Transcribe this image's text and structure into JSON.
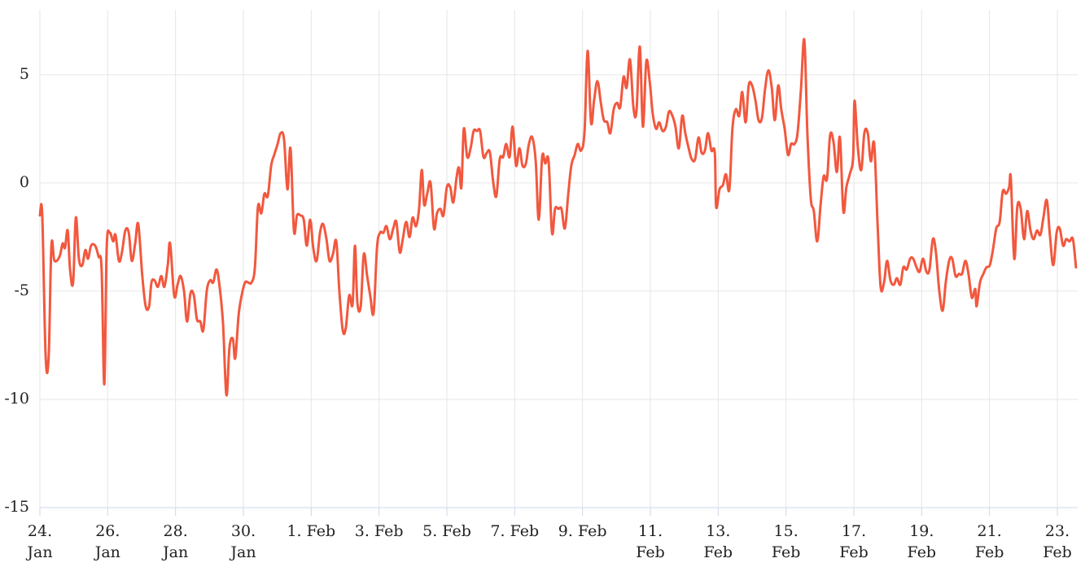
{
  "chart_data": {
    "type": "line",
    "x": [
      0,
      0.07,
      0.17,
      0.26,
      0.34,
      0.43,
      0.58,
      0.67,
      0.74,
      0.82,
      0.89,
      0.98,
      1.06,
      1.15,
      1.25,
      1.34,
      1.42,
      1.51,
      1.63,
      1.73,
      1.82,
      1.9,
      1.97,
      2.06,
      2.16,
      2.23,
      2.33,
      2.42,
      2.52,
      2.62,
      2.71,
      2.81,
      2.9,
      3.02,
      3.12,
      3.22,
      3.29,
      3.38,
      3.48,
      3.58,
      3.67,
      3.77,
      3.84,
      3.96,
      4.06,
      4.15,
      4.25,
      4.34,
      4.44,
      4.54,
      4.63,
      4.73,
      4.82,
      4.92,
      5.02,
      5.11,
      5.21,
      5.3,
      5.4,
      5.5,
      5.59,
      5.69,
      5.76,
      5.86,
      5.95,
      6.05,
      6.14,
      6.24,
      6.34,
      6.43,
      6.53,
      6.62,
      6.72,
      6.82,
      6.91,
      7.01,
      7.1,
      7.2,
      7.3,
      7.39,
      7.49,
      7.58,
      7.68,
      7.78,
      7.87,
      7.97,
      8.06,
      8.16,
      8.26,
      8.35,
      8.45,
      8.54,
      8.64,
      8.74,
      8.83,
      8.93,
      9.02,
      9.12,
      9.22,
      9.29,
      9.36,
      9.46,
      9.55,
      9.65,
      9.74,
      9.84,
      9.94,
      10.03,
      10.13,
      10.22,
      10.32,
      10.42,
      10.51,
      10.61,
      10.7,
      10.8,
      10.9,
      10.99,
      11.09,
      11.18,
      11.26,
      11.33,
      11.42,
      11.52,
      11.62,
      11.71,
      11.81,
      11.9,
      12,
      12.1,
      12.19,
      12.29,
      12.36,
      12.43,
      12.5,
      12.6,
      12.7,
      12.79,
      12.89,
      12.98,
      13.08,
      13.18,
      13.27,
      13.37,
      13.46,
      13.56,
      13.66,
      13.75,
      13.85,
      13.94,
      14.04,
      14.14,
      14.23,
      14.33,
      14.42,
      14.52,
      14.62,
      14.71,
      14.81,
      14.9,
      15,
      15.1,
      15.19,
      15.29,
      15.38,
      15.48,
      15.58,
      15.67,
      15.77,
      15.86,
      15.96,
      16.06,
      16.15,
      16.25,
      16.34,
      16.44,
      16.54,
      16.63,
      16.73,
      16.82,
      16.92,
      17.02,
      17.11,
      17.21,
      17.3,
      17.4,
      17.5,
      17.59,
      17.69,
      17.78,
      17.88,
      17.98,
      18.07,
      18.17,
      18.26,
      18.36,
      18.46,
      18.55,
      18.65,
      18.74,
      18.84,
      18.94,
      19.03,
      19.13,
      19.22,
      19.32,
      19.42,
      19.51,
      19.61,
      19.7,
      19.8,
      19.9,
      19.94,
      20.04,
      20.14,
      20.23,
      20.33,
      20.42,
      20.52,
      20.62,
      20.71,
      20.81,
      20.9,
      21,
      21.1,
      21.19,
      21.29,
      21.38,
      21.48,
      21.58,
      21.67,
      21.77,
      21.86,
      21.96,
      22.06,
      22.15,
      22.25,
      22.34,
      22.44,
      22.54,
      22.63,
      22.73,
      22.82,
      22.92,
      23.02,
      23.11,
      23.21,
      23.3,
      23.4,
      23.5,
      23.59,
      23.69,
      23.78,
      23.88,
      23.98,
      24.02,
      24.12,
      24.22,
      24.31,
      24.41,
      24.5,
      24.6,
      24.7,
      24.79,
      24.89,
      24.98,
      25.08,
      25.18,
      25.27,
      25.37,
      25.46,
      25.56,
      25.66,
      25.75,
      25.85,
      25.94,
      26.04,
      26.14,
      26.23,
      26.33,
      26.42,
      26.52,
      26.62,
      26.71,
      26.81,
      26.9,
      27,
      27.1,
      27.19,
      27.29,
      27.38,
      27.48,
      27.58,
      27.62,
      27.72,
      27.82,
      27.91,
      28.01,
      28.1,
      28.2,
      28.3,
      28.39,
      28.49,
      28.58,
      28.63,
      28.73,
      28.82,
      28.92,
      29.02,
      29.11,
      29.21,
      29.3,
      29.4,
      29.5,
      29.59,
      29.69,
      29.78,
      29.88,
      29.98,
      30.07,
      30.17,
      30.26,
      30.36,
      30.46,
      30.55
    ],
    "series": [
      {
        "color": "#f2583e",
        "values": [
          -1.5,
          -1.5,
          -8,
          -8,
          -2.9,
          -3.6,
          -3.4,
          -2.8,
          -3,
          -2.2,
          -4,
          -4.6,
          -1.6,
          -3.5,
          -3.8,
          -3.1,
          -3.5,
          -2.9,
          -2.9,
          -3.4,
          -4,
          -9.3,
          -3,
          -2.3,
          -2.7,
          -2.4,
          -3.6,
          -3.2,
          -2.2,
          -2.3,
          -3.6,
          -2.8,
          -1.9,
          -4.3,
          -5.7,
          -5.7,
          -4.6,
          -4.5,
          -4.8,
          -4.3,
          -4.8,
          -3.8,
          -2.8,
          -5.2,
          -4.7,
          -4.3,
          -5,
          -6.4,
          -5.1,
          -5.2,
          -6.3,
          -6.4,
          -6.8,
          -5,
          -4.5,
          -4.6,
          -4,
          -4.8,
          -6.5,
          -9.8,
          -7.6,
          -7.2,
          -8.1,
          -6.1,
          -5.2,
          -4.6,
          -4.6,
          -4.6,
          -3.9,
          -1.1,
          -1.4,
          -0.5,
          -0.6,
          0.8,
          1.3,
          1.8,
          2.3,
          2,
          -0.3,
          1.6,
          -2.2,
          -1.5,
          -1.5,
          -1.7,
          -2.9,
          -1.7,
          -3,
          -3.6,
          -2.3,
          -1.9,
          -2.6,
          -3.6,
          -3.3,
          -2.7,
          -5,
          -6.8,
          -6.7,
          -5.2,
          -5.6,
          -2.9,
          -5.5,
          -5.7,
          -3.3,
          -4.3,
          -5.2,
          -6,
          -3,
          -2.3,
          -2.3,
          -2,
          -2.6,
          -2.1,
          -1.8,
          -3.2,
          -2.6,
          -1.8,
          -2.5,
          -1.6,
          -2,
          -1.2,
          0.6,
          -1,
          -0.5,
          0,
          -2.1,
          -1.4,
          -1.2,
          -1.5,
          -0.2,
          -0.2,
          -0.9,
          0.3,
          0.7,
          -0.2,
          2.5,
          1.2,
          1.6,
          2.4,
          2.4,
          2.4,
          1.2,
          1.4,
          1.4,
          0,
          -0.6,
          1.1,
          1.2,
          1.8,
          1.2,
          2.6,
          0.8,
          1.6,
          0.8,
          0.9,
          1.8,
          2.1,
          1,
          -1.7,
          1.2,
          0.9,
          1,
          -2.3,
          -1.2,
          -1.2,
          -1.2,
          -2.1,
          -0.5,
          0.8,
          1.3,
          1.8,
          1.5,
          2.4,
          6.1,
          2.8,
          3.8,
          4.7,
          3.7,
          2.9,
          2.8,
          2.3,
          3.4,
          3.7,
          3.5,
          4.9,
          4.4,
          5.7,
          3.5,
          3.3,
          6.3,
          2.6,
          5.6,
          4.7,
          3.2,
          2.5,
          2.8,
          2.4,
          2.6,
          3.3,
          3.1,
          2.6,
          1.6,
          3.1,
          2.3,
          1.6,
          1.1,
          1.1,
          2.1,
          1.4,
          1.5,
          2.3,
          1.5,
          1.4,
          -1.1,
          -0.3,
          -0.1,
          0.4,
          -0.3,
          2.5,
          3.4,
          3.1,
          4.2,
          2.8,
          4.5,
          4.5,
          3.8,
          2.9,
          3,
          4.3,
          5.2,
          4.4,
          2.9,
          4.5,
          3.4,
          2.5,
          1.3,
          1.8,
          1.8,
          2.3,
          4.3,
          6.6,
          2.3,
          -0.7,
          -1.3,
          -2.7,
          -1,
          0.3,
          0.2,
          2.2,
          1.9,
          0.5,
          2.1,
          -1.3,
          -0.2,
          0.4,
          1.2,
          3.8,
          1.6,
          0.6,
          2.3,
          2.3,
          1,
          1.8,
          -1.9,
          -4.8,
          -4.6,
          -3.6,
          -4.5,
          -4.7,
          -4.4,
          -4.7,
          -3.9,
          -4,
          -3.5,
          -3.5,
          -3.9,
          -4.1,
          -3.5,
          -4.1,
          -4,
          -2.6,
          -3.2,
          -5,
          -5.9,
          -4.6,
          -3.6,
          -3.5,
          -4.3,
          -4.2,
          -4.2,
          -3.6,
          -4.2,
          -5.3,
          -4.9,
          -5.7,
          -4.6,
          -4.2,
          -3.9,
          -3.8,
          -3.1,
          -2.1,
          -1.8,
          -0.4,
          -0.5,
          -0.2,
          0.2,
          -3.5,
          -1.1,
          -1.2,
          -2.6,
          -1.3,
          -2.2,
          -2.6,
          -2.2,
          -2.4,
          -1.6,
          -0.8,
          -2.4,
          -3.8,
          -2.3,
          -2.1,
          -2.9,
          -2.6,
          -2.7,
          -2.6,
          -3.9
        ]
      }
    ],
    "xlim": [
      0,
      30.6
    ],
    "xticks": [
      {
        "value": 0,
        "label": "24. Jan"
      },
      {
        "value": 2,
        "label": "26. Jan"
      },
      {
        "value": 4,
        "label": "28. Jan"
      },
      {
        "value": 6,
        "label": "30. Jan"
      },
      {
        "value": 8,
        "label": "1. Feb"
      },
      {
        "value": 10,
        "label": "3. Feb"
      },
      {
        "value": 12,
        "label": "5. Feb"
      },
      {
        "value": 14,
        "label": "7. Feb"
      },
      {
        "value": 16,
        "label": "9. Feb"
      },
      {
        "value": 18,
        "label": "11. Feb"
      },
      {
        "value": 20,
        "label": "13. Feb"
      },
      {
        "value": 22,
        "label": "15. Feb"
      },
      {
        "value": 24,
        "label": "17. Feb"
      },
      {
        "value": 26,
        "label": "19. Feb"
      },
      {
        "value": 28,
        "label": "21. Feb"
      },
      {
        "value": 30,
        "label": "23. Feb"
      }
    ],
    "ylim": [
      -15,
      8
    ],
    "yticks": [
      -15,
      -10,
      -5,
      0,
      5
    ],
    "grid": true
  }
}
